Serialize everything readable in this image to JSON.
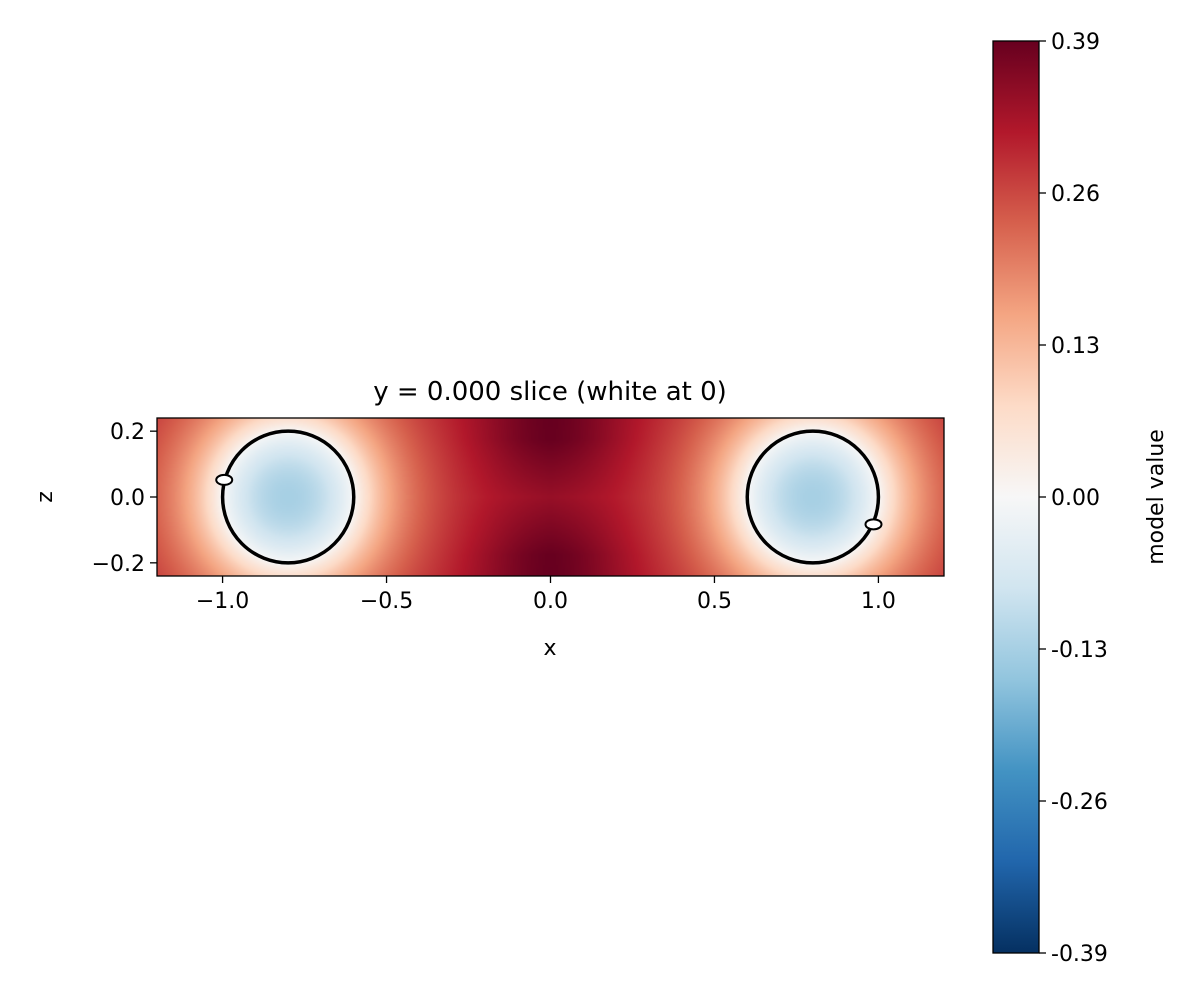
{
  "chart_data": {
    "type": "heatmap",
    "title": "y = 0.000 slice (white at 0)",
    "xlabel": "x",
    "ylabel": "z",
    "xlim": [
      -1.2,
      1.2
    ],
    "ylim": [
      -0.24,
      0.24
    ],
    "x_ticks": [
      -1.0,
      -0.5,
      0.0,
      0.5,
      1.0
    ],
    "x_tick_labels": [
      "−1.0",
      "−0.5",
      "0.0",
      "0.5",
      "1.0"
    ],
    "y_ticks": [
      0.2,
      0.0,
      -0.2
    ],
    "y_tick_labels": [
      "0.2",
      "0.0",
      "−0.2"
    ],
    "grid": false,
    "colormap": "RdBu_r",
    "colorbar": {
      "label": "model value",
      "min": -0.39,
      "max": 0.39,
      "ticks": [
        0.39,
        0.26,
        0.13,
        0.0,
        -0.13,
        -0.26,
        -0.39
      ],
      "tick_labels": [
        "0.39",
        "0.26",
        "0.13",
        "0.00",
        "-0.13",
        "-0.26",
        "-0.39"
      ]
    },
    "field": {
      "description_units": "data",
      "x_range": [
        -1.2,
        1.2
      ],
      "z_range": [
        -0.24,
        0.24
      ],
      "center_max": 0.39,
      "hole_min": -0.13
    },
    "circles": [
      {
        "cx": -0.8,
        "cz": 0.0,
        "r": 0.2,
        "color": "#000000"
      },
      {
        "cx": 0.8,
        "cz": 0.0,
        "r": 0.2,
        "color": "#000000"
      }
    ],
    "markers": [
      {
        "x": -0.995,
        "z": 0.052
      },
      {
        "x": 0.985,
        "z": -0.083
      }
    ]
  }
}
